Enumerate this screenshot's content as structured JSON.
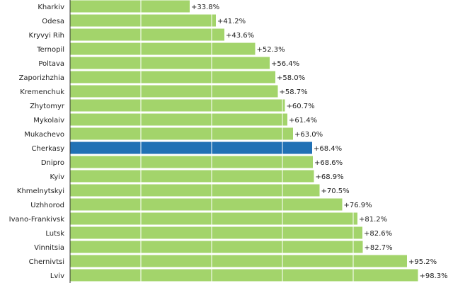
{
  "chart_data": {
    "type": "bar",
    "orientation": "horizontal",
    "categories": [
      "Kharkiv",
      "Odesa",
      "Kryvyi Rih",
      "Ternopil",
      "Poltava",
      "Zaporizhzhia",
      "Kremenchuk",
      "Zhytomyr",
      "Mykolaiv",
      "Mukachevo",
      "Cherkasy",
      "Dnipro",
      "Kyiv",
      "Khmelnytskyi",
      "Uzhhorod",
      "Ivano-Frankivsk",
      "Lutsk",
      "Vinnitsia",
      "Chernivtsi",
      "Lviv"
    ],
    "values": [
      33.8,
      41.2,
      43.6,
      52.3,
      56.4,
      58.0,
      58.7,
      60.7,
      61.4,
      63.0,
      68.4,
      68.6,
      68.9,
      70.5,
      76.9,
      81.2,
      82.6,
      82.7,
      95.2,
      98.3
    ],
    "value_labels": [
      "+33.8%",
      "+41.2%",
      "+43.6%",
      "+52.3%",
      "+56.4%",
      "+58.0%",
      "+58.7%",
      "+60.7%",
      "+61.4%",
      "+63.0%",
      "+68.4%",
      "+68.6%",
      "+68.9%",
      "+70.5%",
      "+76.9%",
      "+81.2%",
      "+82.6%",
      "+82.7%",
      "+95.2%",
      "+98.3%"
    ],
    "highlight": "Cherkasy",
    "xlim": [
      0,
      100
    ],
    "grid": "vertical",
    "colors": {
      "bar": "#a3d46b",
      "highlight": "#2171b5",
      "gridline": "#ffffff",
      "axis": "#333333"
    },
    "title": "",
    "xlabel": "",
    "ylabel": ""
  }
}
